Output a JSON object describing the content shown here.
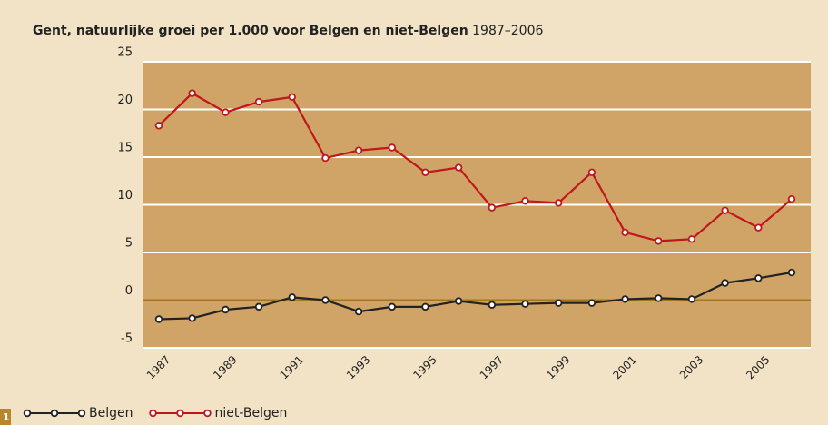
{
  "chart_data": {
    "type": "line",
    "title": "Gent, natuurlijke groei per 1.000 voor Belgen en niet-Belgen",
    "subtitle": "1987–2006",
    "figure_number": "1",
    "categories": [
      "1987",
      null,
      "1989",
      null,
      "1991",
      null,
      "1993",
      null,
      "1995",
      null,
      "1997",
      null,
      "1999",
      null,
      "2001",
      null,
      "2003",
      null,
      "2005",
      null
    ],
    "series": [
      {
        "name": "Belgen",
        "color": "#222222",
        "values": [
          -2.0,
          -1.9,
          -1.0,
          -0.7,
          0.3,
          0.0,
          -1.2,
          -0.7,
          -0.7,
          -0.1,
          -0.5,
          -0.4,
          -0.3,
          -0.3,
          0.1,
          0.2,
          0.1,
          1.8,
          2.3,
          2.9
        ]
      },
      {
        "name": "niet-Belgen",
        "color": "#c0161c",
        "values": [
          18.3,
          21.7,
          19.7,
          20.8,
          21.3,
          14.9,
          15.7,
          16.0,
          13.4,
          13.9,
          9.7,
          10.4,
          10.2,
          13.4,
          7.1,
          6.2,
          6.4,
          9.4,
          7.6,
          10.6
        ]
      }
    ],
    "ylim": [
      -5,
      25
    ],
    "yticks": [
      -5,
      0,
      5,
      10,
      15,
      20,
      25
    ],
    "grid": true,
    "legend": "bottom"
  }
}
